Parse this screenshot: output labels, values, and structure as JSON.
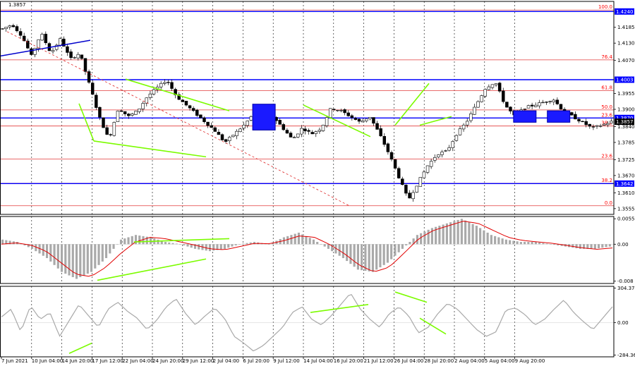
{
  "chart_data": [
    {
      "type": "candlestick",
      "symbol_price": "1.3857",
      "ylim": [
        1.3535,
        1.4275
      ],
      "y_ticks": [
        "1.4185",
        "1.4130",
        "1.4070",
        "1.3955",
        "1.3900",
        "1.3840",
        "1.3785",
        "1.3725",
        "1.3670",
        "1.3610",
        "1.3555"
      ],
      "y_tick_values": [
        1.4185,
        1.413,
        1.407,
        1.3955,
        1.39,
        1.384,
        1.3785,
        1.3725,
        1.367,
        1.361,
        1.3555
      ],
      "x_labels": [
        "7 Jun 2021",
        "10 Jun 04:00",
        "14 Jun 20:00",
        "17 Jun 12:00",
        "22 Jun 04:00",
        "24 Jun 20:00",
        "29 Jun 12:00",
        "2 Jul 04:00",
        "6 Jul 20:00",
        "9 Jul 12:00",
        "14 Jul 04:00",
        "16 Jul 20:00",
        "21 Jul 12:00",
        "26 Jul 04:00",
        "28 Jul 20:00",
        "2 Aug 04:00",
        "5 Aug 04:00",
        "9 Aug 20:00"
      ],
      "fib_levels": [
        {
          "label": "100.0",
          "value": 1.4245
        },
        {
          "label": "76.4",
          "value": 1.4072
        },
        {
          "label": "61.8",
          "value": 1.3965
        },
        {
          "label": "50.0",
          "value": 1.3898
        },
        {
          "label": "23.6",
          "value": 1.387
        },
        {
          "label": "38.2",
          "value": 1.3842
        },
        {
          "label": "23.6",
          "value": 1.3727
        },
        {
          "label": "38.2",
          "value": 1.3643
        },
        {
          "label": "0.0",
          "value": 1.3565
        }
      ],
      "horizontal_lines": [
        {
          "label": "1.4240",
          "value": 1.424
        },
        {
          "label": "1.4003",
          "value": 1.4003
        },
        {
          "label": "1.3870",
          "value": 1.387
        },
        {
          "label": "1.3642",
          "value": 1.3642
        }
      ],
      "current_price": {
        "label": "1.3857",
        "value": 1.3857
      },
      "candle_path": [
        1.418,
        1.4195,
        1.4155,
        1.4085,
        1.4165,
        1.4095,
        1.4145,
        1.4075,
        1.4095,
        1.3985,
        1.3875,
        1.3795,
        1.3905,
        1.3875,
        1.3895,
        1.3945,
        1.3975,
        1.4003,
        1.3945,
        1.3915,
        1.3885,
        1.3855,
        1.3825,
        1.3785,
        1.3815,
        1.3845,
        1.3885,
        1.3905,
        1.3875,
        1.3835,
        1.3795,
        1.3835,
        1.3815,
        1.3835,
        1.3905,
        1.3895,
        1.3875,
        1.3855,
        1.3875,
        1.3815,
        1.3745,
        1.3665,
        1.3585,
        1.3645,
        1.3705,
        1.3745,
        1.3755,
        1.3815,
        1.3855,
        1.3915,
        1.3975,
        1.3995,
        1.3915,
        1.3875,
        1.3905,
        1.3915,
        1.3925,
        1.3935,
        1.3895,
        1.3875,
        1.3855,
        1.3835,
        1.3845,
        1.3857
      ],
      "blue_boxes": [
        {
          "date_index": 0.43,
          "price_top": 1.3918,
          "price_bottom": 1.3828
        },
        {
          "date_index": 0.855,
          "price_top": 1.3895,
          "price_bottom": 1.3855
        },
        {
          "date_index": 0.91,
          "price_top": 1.3895,
          "price_bottom": 1.3855
        }
      ]
    },
    {
      "type": "bar",
      "name": "MACD",
      "ylim": [
        -0.0085,
        0.006
      ],
      "y_ticks": [
        "0.00551",
        "0.00",
        "-0.008"
      ],
      "y_tick_values": [
        0.00551,
        0.0,
        -0.008
      ],
      "histogram_path": [
        0.001,
        0.0005,
        -0.001,
        -0.003,
        -0.006,
        -0.0075,
        -0.006,
        -0.003,
        0.001,
        0.002,
        0.0015,
        0.0005,
        0.0,
        -0.001,
        -0.0015,
        -0.001,
        0.0,
        0.0005,
        0.0,
        0.0015,
        0.0025,
        0.001,
        -0.001,
        -0.003,
        -0.0055,
        -0.006,
        -0.004,
        -0.001,
        0.002,
        0.0035,
        0.0045,
        0.0055,
        0.004,
        0.002,
        0.001,
        0.0005,
        0.0005,
        0.0,
        -0.0005,
        -0.001,
        -0.001,
        -0.0005
      ],
      "signal_path": [
        0.0,
        0.0003,
        -0.0002,
        -0.0015,
        -0.004,
        -0.0065,
        -0.007,
        -0.005,
        -0.002,
        0.0005,
        0.0015,
        0.0012,
        0.0005,
        -0.0002,
        -0.001,
        -0.0012,
        -0.0005,
        0.0002,
        0.0001,
        0.0008,
        0.0018,
        0.0015,
        0.0,
        -0.002,
        -0.0045,
        -0.006,
        -0.005,
        -0.002,
        0.0012,
        0.003,
        0.004,
        0.005,
        0.0045,
        0.003,
        0.0015,
        0.0008,
        0.0005,
        0.0002,
        -0.0003,
        -0.0008,
        -0.0011,
        -0.0008
      ]
    },
    {
      "type": "line",
      "name": "CCI",
      "ylim": [
        -300.0,
        320.0
      ],
      "y_ticks": [
        "304.3747",
        "0.00",
        "-284.368"
      ],
      "y_tick_values": [
        304.3747,
        0.0,
        -284.368
      ],
      "path": [
        50,
        120,
        -80,
        150,
        30,
        90,
        -120,
        20,
        160,
        60,
        -40,
        120,
        180,
        100,
        40,
        -60,
        20,
        140,
        210,
        80,
        -20,
        60,
        130,
        40,
        -120,
        -180,
        -250,
        -200,
        -120,
        -40,
        90,
        140,
        30,
        -20,
        60,
        160,
        260,
        120,
        30,
        -40,
        80,
        140,
        60,
        -90,
        -40,
        80,
        170,
        120,
        30,
        -60,
        -120,
        -80,
        110,
        130,
        70,
        -20,
        30,
        120,
        200,
        90,
        10,
        -60,
        40,
        140
      ]
    }
  ]
}
